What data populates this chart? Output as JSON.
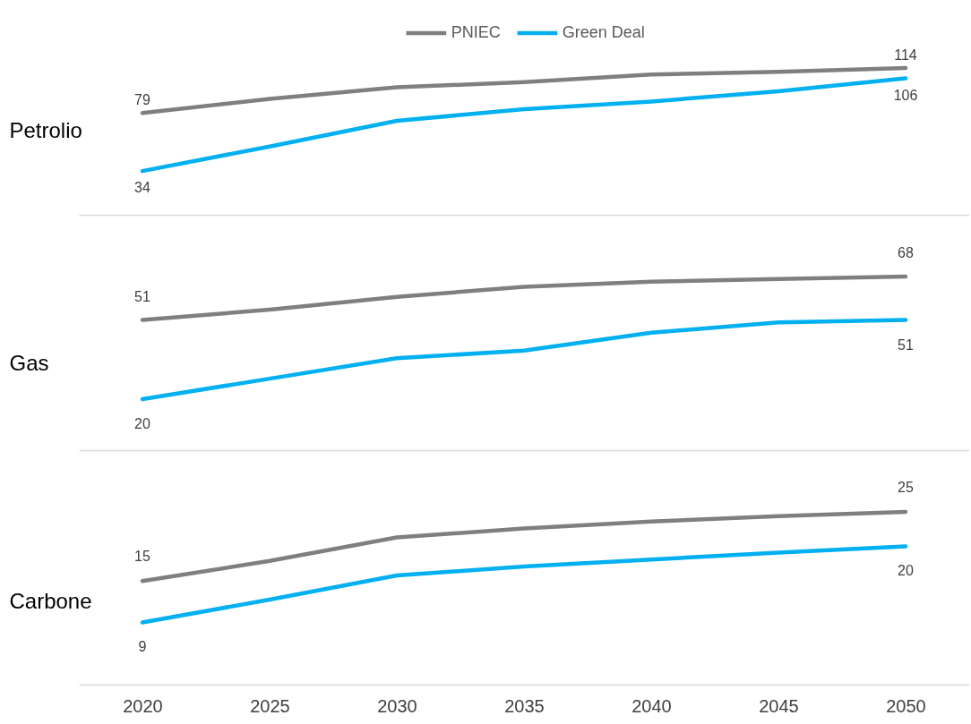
{
  "chart_data": [
    {
      "type": "line",
      "ylabel": "Petrolio",
      "legend": "top",
      "tick_labels": false,
      "categories": [
        "2020",
        "2025",
        "2030",
        "2035",
        "2040",
        "2045",
        "2050"
      ],
      "series": [
        {
          "name": "PNIEC",
          "color": "#7f7f7f",
          "values": [
            79,
            90,
            99,
            103,
            109,
            111,
            114
          ],
          "value_labels": [
            "79",
            null,
            null,
            null,
            null,
            null,
            "114"
          ]
        },
        {
          "name": "Green Deal",
          "color": "#00b0f0",
          "values": [
            34,
            53,
            73,
            82,
            88,
            96,
            106
          ],
          "value_labels": [
            "34",
            null,
            null,
            null,
            null,
            null,
            "106"
          ]
        }
      ]
    },
    {
      "type": "line",
      "ylabel": "Gas",
      "tick_labels": false,
      "categories": [
        "2020",
        "2025",
        "2030",
        "2035",
        "2040",
        "2045",
        "2050"
      ],
      "series": [
        {
          "color": "#7f7f7f",
          "values": [
            51,
            55,
            60,
            64,
            66,
            67,
            68
          ],
          "value_labels": [
            "51",
            null,
            null,
            null,
            null,
            null,
            "68"
          ]
        },
        {
          "color": "#00b0f0",
          "values": [
            20,
            28,
            36,
            39,
            46,
            50,
            51
          ],
          "value_labels": [
            "20",
            null,
            null,
            null,
            null,
            null,
            "51"
          ]
        }
      ]
    },
    {
      "type": "line",
      "ylabel": "Carbone",
      "tick_labels": "x",
      "categories": [
        "2020",
        "2025",
        "2030",
        "2035",
        "2040",
        "2045",
        "2050"
      ],
      "series": [
        {
          "color": "#7f7f7f",
          "values": [
            15,
            17.9,
            21.3,
            22.6,
            23.6,
            24.4,
            25
          ],
          "value_labels": [
            "15",
            null,
            null,
            null,
            null,
            null,
            "25"
          ]
        },
        {
          "color": "#00b0f0",
          "values": [
            9,
            12.3,
            15.8,
            17.1,
            18.1,
            19.1,
            20
          ],
          "value_labels": [
            "9",
            null,
            null,
            null,
            null,
            null,
            "20"
          ]
        }
      ]
    }
  ]
}
